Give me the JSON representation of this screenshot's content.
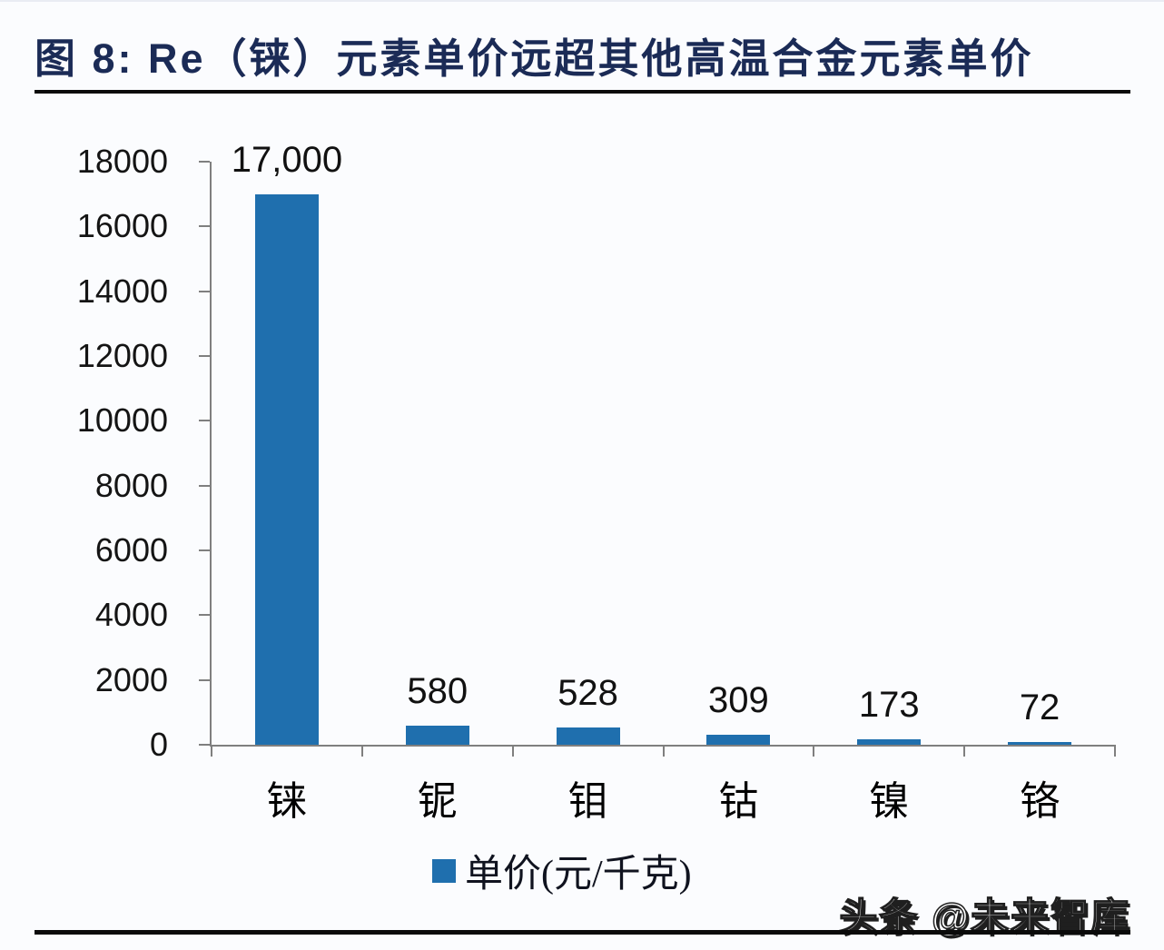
{
  "page": {
    "watermark": "头条 @未来智库"
  },
  "chart": {
    "title": "图 8: Re（铼）元素单价远超其他高温合金元素单价",
    "legend_label": "单价(元/千克)",
    "colors": {
      "bar": "#1f6fae",
      "title": "#1b2b56",
      "axis": "#7f7f7f",
      "rule": "#0a0a0a"
    }
  },
  "chart_data": {
    "type": "bar",
    "title": "图 8: Re（铼）元素单价远超其他高温合金元素单价",
    "categories": [
      "铼",
      "铌",
      "钼",
      "钴",
      "镍",
      "铬"
    ],
    "values": [
      17000,
      580,
      528,
      309,
      173,
      72
    ],
    "value_labels": [
      "17,000",
      "580",
      "528",
      "309",
      "173",
      "72"
    ],
    "series": [
      {
        "name": "单价(元/千克)",
        "values": [
          17000,
          580,
          528,
          309,
          173,
          72
        ]
      }
    ],
    "legend": [
      "单价(元/千克)"
    ],
    "legend_position": "bottom",
    "xlabel": "",
    "ylabel": "",
    "ylim": [
      0,
      18000
    ],
    "yticks": [
      0,
      2000,
      4000,
      6000,
      8000,
      10000,
      12000,
      14000,
      16000,
      18000
    ],
    "grid": false
  }
}
